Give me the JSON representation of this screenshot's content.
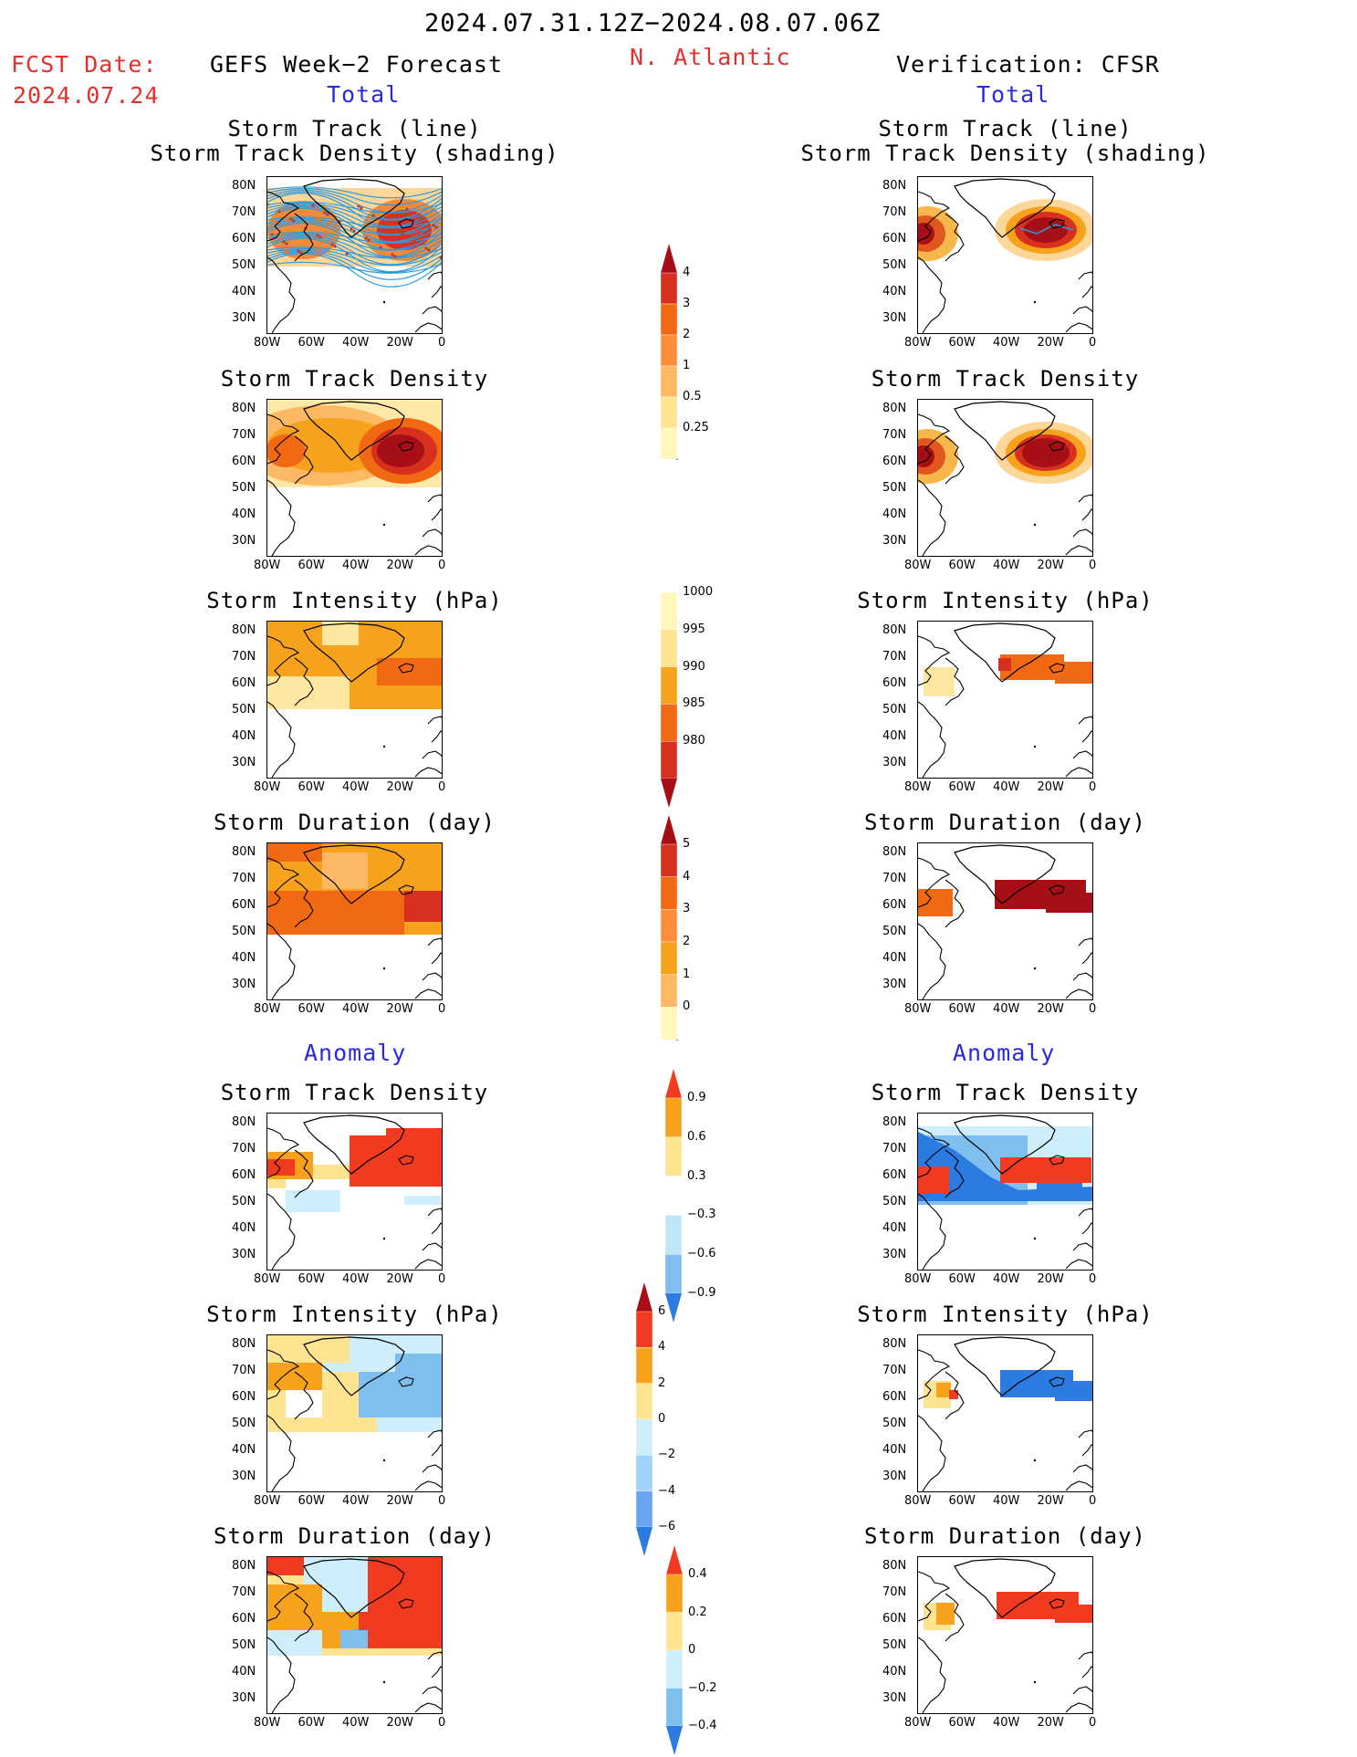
{
  "header": {
    "date_range": "2024.07.31.12Z−2024.08.07.06Z",
    "fcst_label": "FCST Date:",
    "fcst_date": "2024.07.24",
    "left_title": "GEFS Week−2 Forecast",
    "region": "N. Atlantic",
    "right_title": "Verification: CFSR",
    "total_label": "Total",
    "anomaly_label": "Anomaly"
  },
  "panel_titles": {
    "track_line": "Storm Track (line)",
    "track_shading": "Storm Track Density (shading)",
    "density": "Storm Track Density",
    "intensity": "Storm Intensity (hPa)",
    "duration": "Storm Duration (day)"
  },
  "axes": {
    "lat_ticks": [
      "80N",
      "70N",
      "60N",
      "50N",
      "40N",
      "30N"
    ],
    "lon_ticks": [
      "80W",
      "60W",
      "40W",
      "20W",
      "0"
    ]
  },
  "colorbars": {
    "density_total": {
      "labels": [
        "4",
        "3",
        "2",
        "1",
        "0.5",
        "0.25"
      ],
      "colors": [
        "#a50f15",
        "#d7301f",
        "#f16913",
        "#fd8d3c",
        "#fdb863",
        "#fee391",
        "#fff7bc"
      ]
    },
    "intensity_total": {
      "labels": [
        "1000",
        "995",
        "990",
        "985",
        "980"
      ],
      "colors": [
        "#fff7bc",
        "#fee391",
        "#f7a21c",
        "#f16913",
        "#d7301f",
        "#a50f15"
      ]
    },
    "duration_total": {
      "labels": [
        "5",
        "4",
        "3",
        "2",
        "1",
        "0"
      ],
      "colors": [
        "#a50f15",
        "#d7301f",
        "#f16913",
        "#fd8d3c",
        "#f7a21c",
        "#fdb863",
        "#fff7bc"
      ]
    },
    "density_anom": {
      "labels": [
        "0.9",
        "0.6",
        "0.3",
        "−0.3",
        "−0.6",
        "−0.9"
      ],
      "colors": [
        "#f03b20",
        "#f7a21c",
        "#fee391",
        "#ffffff",
        "#bfe6f7",
        "#7fbff0",
        "#2c7be0"
      ]
    },
    "intensity_anom": {
      "labels": [
        "6",
        "4",
        "2",
        "0",
        "−2",
        "−4",
        "−6"
      ],
      "colors": [
        "#a50f15",
        "#f03b20",
        "#f7a21c",
        "#fee391",
        "#cdeefa",
        "#9fd2f6",
        "#6aa6ee",
        "#2c7be0"
      ]
    },
    "duration_anom": {
      "labels": [
        "0.4",
        "0.2",
        "0",
        "−0.2",
        "−0.4"
      ],
      "colors": [
        "#f03b20",
        "#f7a21c",
        "#fee391",
        "#cdeefa",
        "#7fbff0",
        "#2c7be0"
      ]
    }
  }
}
